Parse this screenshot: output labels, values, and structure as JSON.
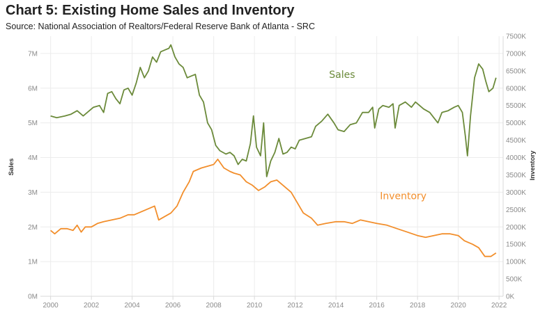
{
  "header": {
    "title": "Chart 5: Existing Home Sales and Inventory",
    "subtitle": "Source: National Association of Realtors/Federal Reserve Bank of Atlanta - SRC"
  },
  "colors": {
    "sales": "#6b8a3a",
    "inventory": "#f28e2b",
    "grid": "#ececec",
    "axis": "#d9d9d9"
  },
  "chart_data": {
    "type": "line",
    "title": "Chart 5: Existing Home Sales and Inventory",
    "subtitle": "Source: National Association of Realtors/Federal Reserve Bank of Atlanta - SRC",
    "ylabel_left": "Sales",
    "ylabel_right": "Inventory",
    "xlim": [
      1999.5,
      2022.2
    ],
    "x_ticks": [
      "2000",
      "2002",
      "2004",
      "2006",
      "2008",
      "2010",
      "2012",
      "2014",
      "2016",
      "2018",
      "2020",
      "2022"
    ],
    "ylim_left": [
      0,
      7.5
    ],
    "y_ticks_left": [
      "0M",
      "1M",
      "2M",
      "3M",
      "4M",
      "5M",
      "6M",
      "7M"
    ],
    "ylim_right": [
      0,
      7500
    ],
    "y_ticks_right": [
      "0K",
      "500K",
      "1000K",
      "1500K",
      "2000K",
      "2500K",
      "3000K",
      "3500K",
      "4000K",
      "4500K",
      "5000K",
      "5500K",
      "6000K",
      "6500K",
      "7000K",
      "7500K"
    ],
    "grid": true,
    "annotations": [
      {
        "text": "Sales",
        "series": "Sales",
        "x": 2014.3,
        "y": 6.3,
        "axis": "left"
      },
      {
        "text": "Inventory",
        "series": "Inventory",
        "x": 2017.3,
        "y": 2.8,
        "axis": "left"
      }
    ],
    "series": [
      {
        "name": "Sales",
        "axis": "left",
        "unit": "millions",
        "points": [
          [
            2000.0,
            5.2
          ],
          [
            2000.3,
            5.15
          ],
          [
            2000.7,
            5.2
          ],
          [
            2001.0,
            5.25
          ],
          [
            2001.3,
            5.35
          ],
          [
            2001.6,
            5.2
          ],
          [
            2001.9,
            5.35
          ],
          [
            2002.1,
            5.45
          ],
          [
            2002.4,
            5.5
          ],
          [
            2002.6,
            5.3
          ],
          [
            2002.8,
            5.85
          ],
          [
            2003.0,
            5.9
          ],
          [
            2003.2,
            5.7
          ],
          [
            2003.4,
            5.55
          ],
          [
            2003.6,
            5.95
          ],
          [
            2003.8,
            6.0
          ],
          [
            2004.0,
            5.8
          ],
          [
            2004.2,
            6.15
          ],
          [
            2004.4,
            6.6
          ],
          [
            2004.6,
            6.3
          ],
          [
            2004.8,
            6.5
          ],
          [
            2005.0,
            6.9
          ],
          [
            2005.2,
            6.75
          ],
          [
            2005.4,
            7.05
          ],
          [
            2005.6,
            7.1
          ],
          [
            2005.8,
            7.15
          ],
          [
            2005.9,
            7.25
          ],
          [
            2006.1,
            6.9
          ],
          [
            2006.3,
            6.7
          ],
          [
            2006.5,
            6.6
          ],
          [
            2006.7,
            6.3
          ],
          [
            2006.9,
            6.35
          ],
          [
            2007.1,
            6.4
          ],
          [
            2007.3,
            5.8
          ],
          [
            2007.5,
            5.6
          ],
          [
            2007.7,
            5.0
          ],
          [
            2007.9,
            4.8
          ],
          [
            2008.1,
            4.35
          ],
          [
            2008.3,
            4.2
          ],
          [
            2008.6,
            4.1
          ],
          [
            2008.8,
            4.15
          ],
          [
            2009.0,
            4.05
          ],
          [
            2009.2,
            3.8
          ],
          [
            2009.4,
            3.95
          ],
          [
            2009.6,
            3.9
          ],
          [
            2009.8,
            4.4
          ],
          [
            2009.95,
            5.2
          ],
          [
            2010.1,
            4.3
          ],
          [
            2010.3,
            4.05
          ],
          [
            2010.45,
            5.0
          ],
          [
            2010.6,
            3.45
          ],
          [
            2010.8,
            3.9
          ],
          [
            2011.0,
            4.15
          ],
          [
            2011.2,
            4.55
          ],
          [
            2011.4,
            4.1
          ],
          [
            2011.6,
            4.15
          ],
          [
            2011.8,
            4.3
          ],
          [
            2012.0,
            4.25
          ],
          [
            2012.2,
            4.5
          ],
          [
            2012.5,
            4.55
          ],
          [
            2012.8,
            4.6
          ],
          [
            2013.0,
            4.9
          ],
          [
            2013.3,
            5.05
          ],
          [
            2013.6,
            5.25
          ],
          [
            2013.9,
            5.0
          ],
          [
            2014.1,
            4.8
          ],
          [
            2014.4,
            4.75
          ],
          [
            2014.7,
            4.95
          ],
          [
            2015.0,
            5.0
          ],
          [
            2015.3,
            5.3
          ],
          [
            2015.6,
            5.3
          ],
          [
            2015.8,
            5.45
          ],
          [
            2015.9,
            4.85
          ],
          [
            2016.1,
            5.4
          ],
          [
            2016.3,
            5.5
          ],
          [
            2016.6,
            5.45
          ],
          [
            2016.8,
            5.55
          ],
          [
            2016.9,
            4.85
          ],
          [
            2017.1,
            5.5
          ],
          [
            2017.4,
            5.6
          ],
          [
            2017.7,
            5.45
          ],
          [
            2017.9,
            5.6
          ],
          [
            2018.1,
            5.5
          ],
          [
            2018.3,
            5.4
          ],
          [
            2018.6,
            5.3
          ],
          [
            2018.8,
            5.15
          ],
          [
            2019.0,
            5.0
          ],
          [
            2019.2,
            5.3
          ],
          [
            2019.5,
            5.35
          ],
          [
            2019.8,
            5.45
          ],
          [
            2020.0,
            5.5
          ],
          [
            2020.2,
            5.3
          ],
          [
            2020.35,
            4.6
          ],
          [
            2020.45,
            4.05
          ],
          [
            2020.6,
            5.2
          ],
          [
            2020.8,
            6.3
          ],
          [
            2020.9,
            6.5
          ],
          [
            2021.0,
            6.7
          ],
          [
            2021.2,
            6.55
          ],
          [
            2021.35,
            6.2
          ],
          [
            2021.5,
            5.9
          ],
          [
            2021.7,
            6.0
          ],
          [
            2021.85,
            6.3
          ]
        ]
      },
      {
        "name": "Inventory",
        "axis": "right",
        "unit": "thousands",
        "points": [
          [
            2000.0,
            1900
          ],
          [
            2000.2,
            1800
          ],
          [
            2000.5,
            1950
          ],
          [
            2000.8,
            1950
          ],
          [
            2001.1,
            1900
          ],
          [
            2001.3,
            2050
          ],
          [
            2001.5,
            1850
          ],
          [
            2001.7,
            2000
          ],
          [
            2002.0,
            2000
          ],
          [
            2002.3,
            2100
          ],
          [
            2002.6,
            2150
          ],
          [
            2003.0,
            2200
          ],
          [
            2003.4,
            2250
          ],
          [
            2003.8,
            2350
          ],
          [
            2004.1,
            2350
          ],
          [
            2004.5,
            2450
          ],
          [
            2004.9,
            2550
          ],
          [
            2005.1,
            2600
          ],
          [
            2005.3,
            2200
          ],
          [
            2005.6,
            2300
          ],
          [
            2005.9,
            2400
          ],
          [
            2006.2,
            2600
          ],
          [
            2006.5,
            3000
          ],
          [
            2006.8,
            3300
          ],
          [
            2007.0,
            3600
          ],
          [
            2007.4,
            3700
          ],
          [
            2007.7,
            3750
          ],
          [
            2008.0,
            3800
          ],
          [
            2008.2,
            3950
          ],
          [
            2008.5,
            3700
          ],
          [
            2008.8,
            3600
          ],
          [
            2009.0,
            3550
          ],
          [
            2009.3,
            3500
          ],
          [
            2009.6,
            3300
          ],
          [
            2009.9,
            3200
          ],
          [
            2010.2,
            3050
          ],
          [
            2010.5,
            3150
          ],
          [
            2010.8,
            3300
          ],
          [
            2011.1,
            3350
          ],
          [
            2011.4,
            3200
          ],
          [
            2011.8,
            3000
          ],
          [
            2012.1,
            2700
          ],
          [
            2012.4,
            2400
          ],
          [
            2012.8,
            2250
          ],
          [
            2013.1,
            2050
          ],
          [
            2013.5,
            2100
          ],
          [
            2014.0,
            2150
          ],
          [
            2014.4,
            2150
          ],
          [
            2014.8,
            2100
          ],
          [
            2015.2,
            2200
          ],
          [
            2015.6,
            2150
          ],
          [
            2016.0,
            2100
          ],
          [
            2016.5,
            2050
          ],
          [
            2017.0,
            1950
          ],
          [
            2017.5,
            1850
          ],
          [
            2018.0,
            1750
          ],
          [
            2018.4,
            1700
          ],
          [
            2018.8,
            1750
          ],
          [
            2019.2,
            1800
          ],
          [
            2019.6,
            1800
          ],
          [
            2020.0,
            1750
          ],
          [
            2020.3,
            1600
          ],
          [
            2020.7,
            1500
          ],
          [
            2021.0,
            1400
          ],
          [
            2021.3,
            1150
          ],
          [
            2021.6,
            1150
          ],
          [
            2021.85,
            1250
          ]
        ]
      }
    ]
  }
}
